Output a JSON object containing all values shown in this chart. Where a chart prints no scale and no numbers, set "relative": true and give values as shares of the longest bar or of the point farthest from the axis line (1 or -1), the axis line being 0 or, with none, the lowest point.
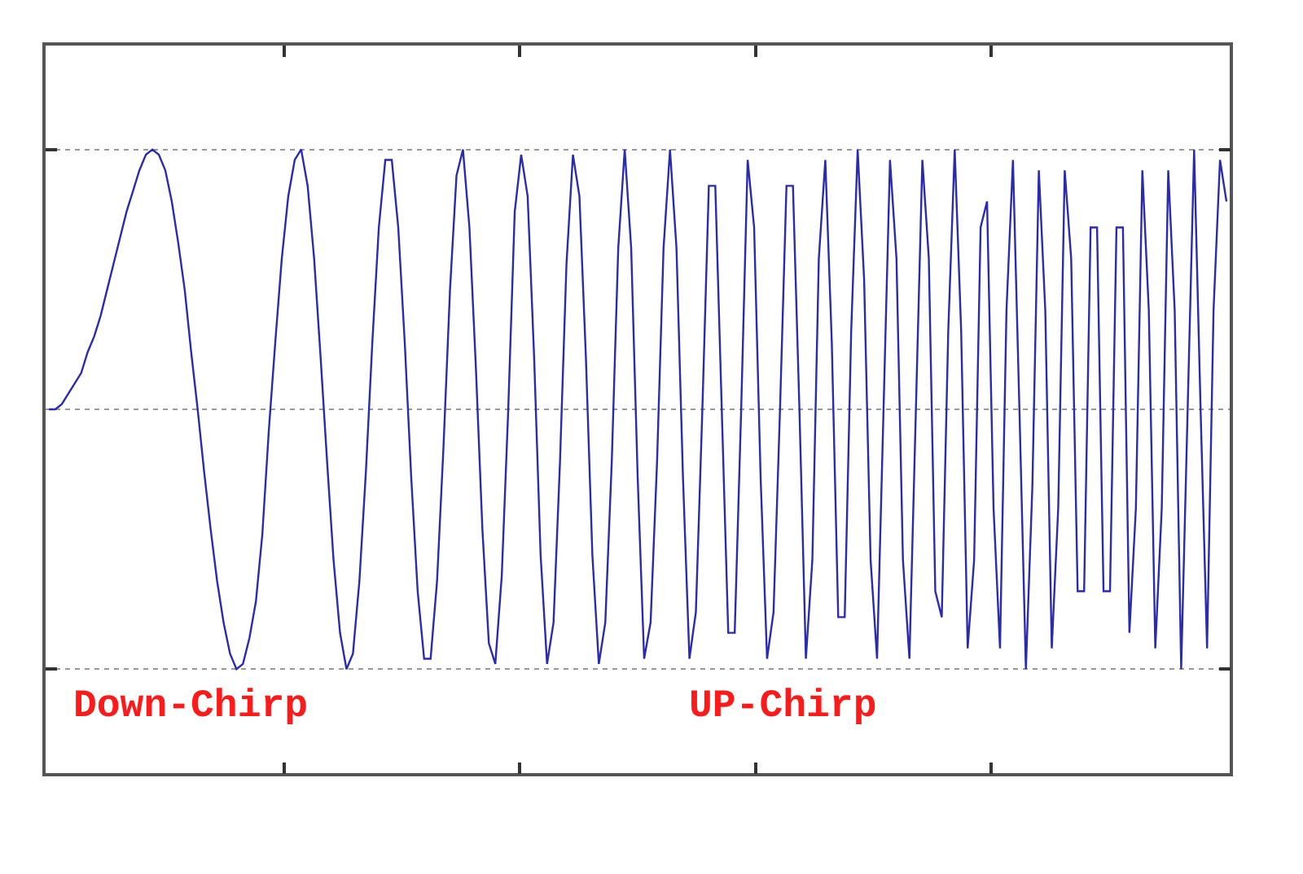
{
  "chart_data": {
    "type": "line",
    "relative": true,
    "grid": "y",
    "ref_lines": [
      {
        "axis": "y",
        "value": 0.5,
        "color": "#999999",
        "line_style": "dotted"
      }
    ],
    "marker": "none",
    "line_style": "solid",
    "categories": [
      null,
      null,
      null,
      null,
      null,
      null,
      null,
      null,
      null,
      null,
      null,
      null,
      null,
      null,
      null,
      null,
      null,
      null,
      null,
      null,
      null,
      null,
      null,
      null,
      null,
      null,
      null,
      null,
      null,
      null,
      null,
      null,
      null,
      null,
      null,
      null,
      null,
      null,
      null,
      null,
      null,
      null,
      null,
      null,
      null,
      null,
      null,
      null,
      null,
      null,
      null,
      null,
      null,
      null,
      null,
      null,
      null,
      null,
      null,
      null,
      null,
      null,
      null,
      null,
      null,
      null,
      null,
      null,
      null,
      null,
      null,
      null,
      null,
      null,
      null,
      null,
      null,
      null,
      null,
      null,
      null,
      null,
      null,
      null,
      null,
      null,
      null,
      null,
      null,
      null,
      null,
      null,
      null,
      null,
      null,
      null,
      null,
      null,
      null,
      null,
      null,
      null,
      null,
      null,
      null,
      null,
      null,
      null,
      null,
      null,
      null,
      null,
      null,
      null,
      null,
      null,
      null,
      null,
      null,
      null,
      null,
      null,
      null,
      null,
      null,
      null,
      null,
      null,
      null,
      null,
      null,
      null,
      null,
      null,
      null,
      null,
      null,
      null,
      null,
      null,
      null,
      null,
      null,
      null,
      null,
      null,
      null,
      null,
      null,
      null,
      null,
      null,
      null,
      null,
      null,
      null,
      null,
      null,
      null,
      null,
      null,
      null,
      null,
      null,
      null,
      null,
      null,
      null,
      null,
      null,
      null,
      null,
      null,
      null,
      null,
      null,
      null,
      null,
      null,
      null,
      null,
      null,
      null
    ],
    "series": [
      {
        "color": "#2b2bb0",
        "values": [
          0.5,
          0.5,
          0.51,
          0.53,
          0.55,
          0.57,
          0.61,
          0.64,
          0.68,
          0.73,
          0.78,
          0.83,
          0.88,
          0.92,
          0.96,
          0.99,
          1,
          0.99,
          0.96,
          0.9,
          0.82,
          0.73,
          0.61,
          0.5,
          0.38,
          0.27,
          0.17,
          0.09,
          0.03,
          0,
          0.01,
          0.06,
          0.13,
          0.26,
          0.46,
          0.63,
          0.79,
          0.91,
          0.98,
          1,
          0.93,
          0.79,
          0.6,
          0.4,
          0.21,
          0.07,
          0,
          0.03,
          0.17,
          0.38,
          0.63,
          0.85,
          0.98,
          0.98,
          0.85,
          0.63,
          0.37,
          0.15,
          0.02,
          0.02,
          0.17,
          0.43,
          0.73,
          0.95,
          1,
          0.85,
          0.58,
          0.27,
          0.05,
          0.01,
          0.18,
          0.5,
          0.88,
          0.99,
          0.91,
          0.6,
          0.22,
          0.01,
          0.09,
          0.4,
          0.78,
          0.99,
          0.91,
          0.6,
          0.22,
          0.01,
          0.09,
          0.4,
          0.81,
          1,
          0.81,
          0.37,
          0.02,
          0.09,
          0.4,
          0.81,
          1,
          0.81,
          0.37,
          0.02,
          0.11,
          0.5,
          0.93,
          0.93,
          0.5,
          0.07,
          0.07,
          0.5,
          0.98,
          0.85,
          0.37,
          0.02,
          0.11,
          0.5,
          0.93,
          0.93,
          0.5,
          0.02,
          0.21,
          0.79,
          0.98,
          0.63,
          0.1,
          0.1,
          0.65,
          1,
          0.75,
          0.21,
          0.02,
          0.5,
          0.98,
          0.79,
          0.21,
          0.02,
          0.5,
          0.98,
          0.79,
          0.15,
          0.1,
          0.65,
          1,
          0.65,
          0.04,
          0.21,
          0.85,
          0.9,
          0.31,
          0.04,
          0.69,
          0.98,
          0.5,
          0,
          0.35,
          0.96,
          0.69,
          0.04,
          0.31,
          0.96,
          0.79,
          0.15,
          0.15,
          0.85,
          0.85,
          0.15,
          0.15,
          0.85,
          0.85,
          0.07,
          0.31,
          0.96,
          0.69,
          0.04,
          0.31,
          0.96,
          0.69,
          0,
          0.5,
          1,
          0.5,
          0.04,
          0.69,
          0.98,
          0.9
        ]
      }
    ],
    "annotations": [
      "Down-Chirp",
      "UP-Chirp"
    ]
  }
}
